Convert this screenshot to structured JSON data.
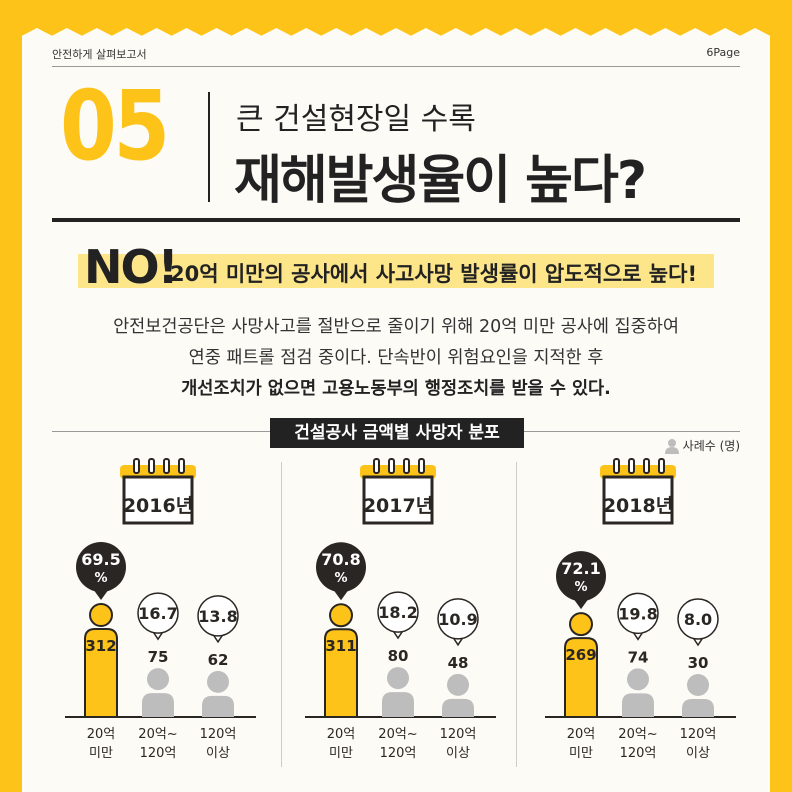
{
  "header": {
    "doc_title": "안전하게 살펴보고서",
    "page": "6Page"
  },
  "title": {
    "number": "05",
    "sub": "큰 건설현장일 수록",
    "main": "재해발생율이 높다?"
  },
  "answer": {
    "no": "NO!",
    "text": "20억 미만의 공사에서 사고사망 발생률이 압도적으로 높다!"
  },
  "description": {
    "line1": "안전보건공단은 사망사고를 절반으로 줄이기 위해 20억 미만 공사에 집중하여",
    "line2": "연중 패트롤 점검 중이다. 단속반이 위험요인을 지적한 후",
    "line3": "개선조치가 없으면 고용노동부의 행정조치를 받을 수 있다."
  },
  "section_title": "건설공사 금액별 사망자 분포",
  "unit_label": "사례수 (명)",
  "colors": {
    "accent": "#FDC318",
    "dark": "#2A2623",
    "gray": "#BDBDBD"
  },
  "chart_data": {
    "type": "bar",
    "title": "건설공사 금액별 사망자 분포",
    "unit": "사례수 (명)",
    "categories": [
      "20억\n미만",
      "20억~\n120억",
      "120억\n이상"
    ],
    "panels": [
      {
        "year": "2016년",
        "counts": [
          312,
          75,
          62
        ],
        "percents": [
          69.5,
          16.7,
          13.8
        ]
      },
      {
        "year": "2017년",
        "counts": [
          311,
          80,
          48
        ],
        "percents": [
          70.8,
          18.2,
          10.9
        ]
      },
      {
        "year": "2018년",
        "counts": [
          269,
          74,
          30
        ],
        "percents": [
          72.1,
          19.8,
          8.0
        ]
      }
    ]
  }
}
